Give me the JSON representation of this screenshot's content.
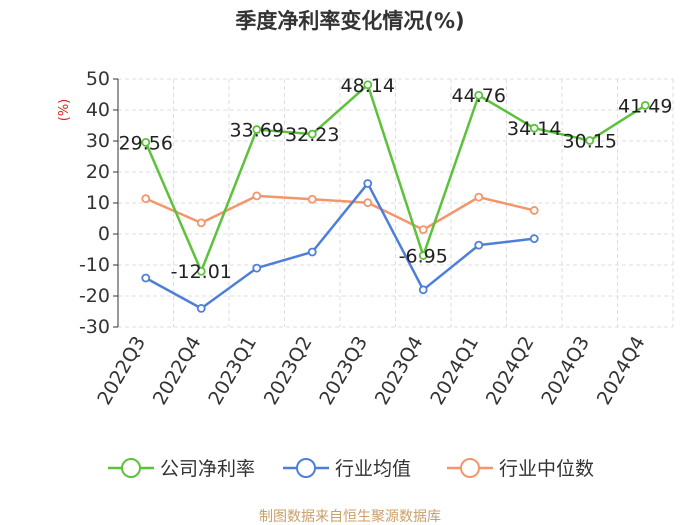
{
  "chart_data": {
    "type": "line",
    "title": "季度净利率变化情况(%)",
    "ylabel": "(%)",
    "xlabel": "",
    "categories": [
      "2022Q3",
      "2022Q4",
      "2023Q1",
      "2023Q2",
      "2023Q3",
      "2023Q4",
      "2024Q1",
      "2024Q2",
      "2024Q3",
      "2024Q4"
    ],
    "ylim": [
      -30,
      50
    ],
    "yticks": [
      50,
      40,
      30,
      20,
      10,
      0,
      -10,
      -20,
      -30
    ],
    "grid": true,
    "legend_position": "bottom",
    "series": [
      {
        "name": "公司净利率",
        "color": "#5cc13b",
        "values": [
          29.56,
          -12.01,
          33.69,
          32.23,
          48.14,
          -6.95,
          44.76,
          34.14,
          30.15,
          41.49
        ],
        "labels": [
          "29.56",
          "-12.01",
          "33.69",
          "32.23",
          "48.14",
          "-6.95",
          "44.76",
          "34.14",
          "30.15",
          "41.49"
        ]
      },
      {
        "name": "行业均值",
        "color": "#4e7fd8",
        "values": [
          -14.2,
          -24.0,
          -11.0,
          -5.8,
          16.3,
          -18.0,
          -3.6,
          -1.5,
          null,
          null
        ]
      },
      {
        "name": "行业中位数",
        "color": "#f4956a",
        "values": [
          11.4,
          3.6,
          12.3,
          11.2,
          10.1,
          1.4,
          11.9,
          7.6,
          null,
          null
        ]
      }
    ],
    "source": "制图数据来自恒生聚源数据库"
  }
}
